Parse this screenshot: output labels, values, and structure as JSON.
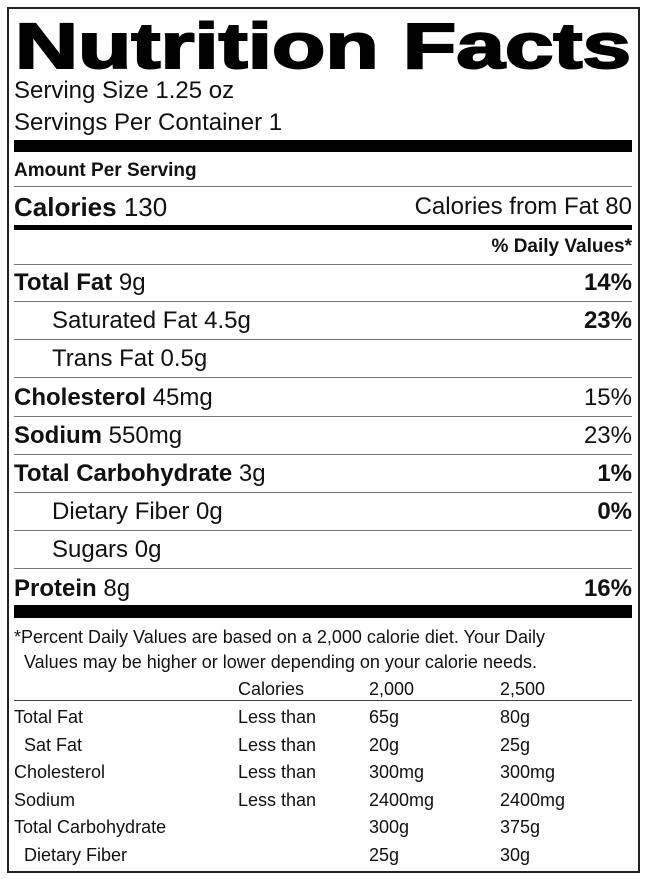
{
  "title": "Nutrition Facts",
  "serving_size": "Serving Size 1.25 oz",
  "servings_per_container": "Servings Per Container 1",
  "amount_per_serving": "Amount Per Serving",
  "calories": {
    "label": "Calories",
    "value": "130",
    "from_fat": "Calories from Fat 80"
  },
  "daily_values_header": "% Daily Values*",
  "nutrients": [
    {
      "label": "Total Fat",
      "amount": "9g",
      "dv": "14%",
      "indent": false,
      "bold_dv": true
    },
    {
      "label": "Saturated Fat",
      "amount": "4.5g",
      "dv": "23%",
      "indent": true,
      "bold_dv": true
    },
    {
      "label": "Trans Fat",
      "amount": "0.5g",
      "indent": true
    },
    {
      "label": "Cholesterol",
      "amount": "45mg",
      "dv": "15%",
      "indent": false,
      "bold_dv": false
    },
    {
      "label": "Sodium",
      "amount": "550mg",
      "dv": "23%",
      "indent": false,
      "bold_dv": false
    },
    {
      "label": "Total Carbohydrate",
      "amount": "3g",
      "dv": "1%",
      "indent": false,
      "bold_dv": true
    },
    {
      "label": "Dietary Fiber",
      "amount": "0g",
      "dv": "0%",
      "indent": true,
      "bold_dv": true
    },
    {
      "label": "Sugars",
      "amount": "0g",
      "indent": true
    },
    {
      "label": "Protein",
      "amount": "8g",
      "dv": "16%",
      "indent": false,
      "bold_dv": true
    }
  ],
  "footnote": [
    "*Percent Daily Values are based on a 2,000 calorie diet. Your Daily",
    "Values may be higher or lower depending on your calorie needs."
  ],
  "reference_table": {
    "header": {
      "label": "Calories",
      "columns": [
        "2,000",
        "2,500"
      ]
    },
    "rows": [
      {
        "name": "Total Fat",
        "limit": "Less than",
        "values": [
          "65g",
          "80g"
        ],
        "indent": false
      },
      {
        "name": "Sat Fat",
        "limit": "Less than",
        "values": [
          "20g",
          "25g"
        ],
        "indent": true
      },
      {
        "name": "Cholesterol",
        "limit": "Less than",
        "values": [
          "300mg",
          "300mg"
        ],
        "indent": false
      },
      {
        "name": "Sodium",
        "limit": "Less than",
        "values": [
          "2400mg",
          "2400mg"
        ],
        "indent": false
      },
      {
        "name": "Total Carbohydrate",
        "values": [
          "300g",
          "375g"
        ],
        "indent": false
      },
      {
        "name": "Dietary Fiber",
        "values": [
          "25g",
          "30g"
        ],
        "indent": true
      }
    ]
  }
}
